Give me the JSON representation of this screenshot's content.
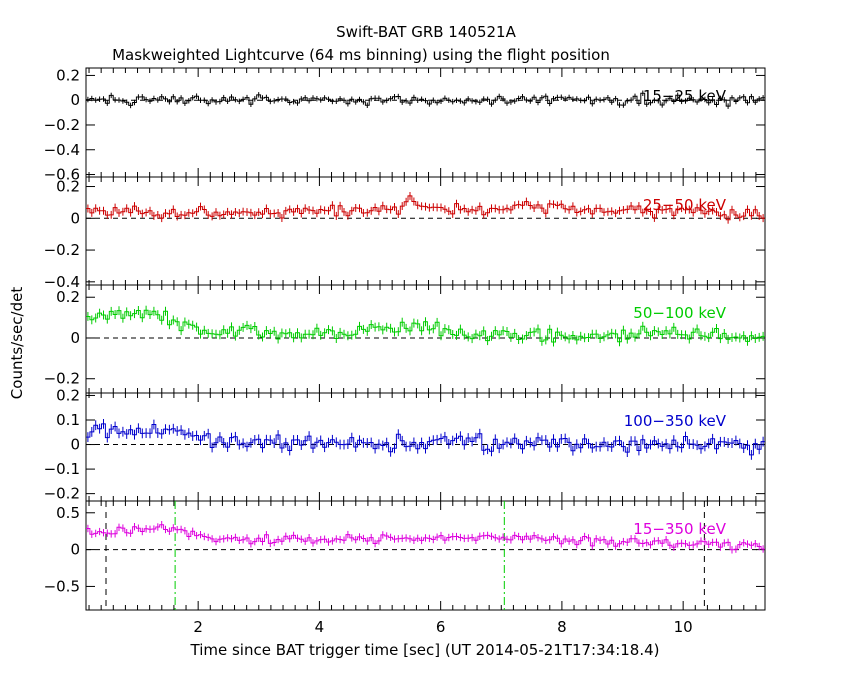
{
  "chart_data": {
    "type": "line",
    "title": "Swift-BAT GRB 140521A",
    "subtitle": "Maskweighted Lightcurve (64 ms binning) using the flight position",
    "xlabel": "Time since BAT trigger time [sec] (UT 2014-05-21T17:34:18.4)",
    "ylabel": "Counts/sec/det",
    "xlim": [
      0.15,
      11.35
    ],
    "xticks": [
      2,
      4,
      6,
      8,
      10
    ],
    "panels": [
      {
        "name": "15−25 keV",
        "color": "#000000",
        "ylim": [
          -0.62,
          0.26
        ],
        "yticks": [
          0.2,
          0,
          -0.2,
          -0.4,
          -0.6
        ],
        "ytick_labels": [
          "0.2",
          "0",
          "−0.2",
          "−0.4",
          "−0.6"
        ],
        "level": [
          [
            0.15,
            0.0
          ],
          [
            11.35,
            0.0
          ]
        ],
        "noise": 0.025,
        "err": 0.022
      },
      {
        "name": "25−50 keV",
        "color": "#cc0000",
        "ylim": [
          -0.42,
          0.26
        ],
        "yticks": [
          0.2,
          0,
          -0.2,
          -0.4
        ],
        "ytick_labels": [
          "0.2",
          "0",
          "−0.2",
          "−0.4"
        ],
        "level": [
          [
            0.15,
            0.05
          ],
          [
            2,
            0.04
          ],
          [
            5.3,
            0.05
          ],
          [
            5.5,
            0.12
          ],
          [
            5.8,
            0.05
          ],
          [
            7.3,
            0.07
          ],
          [
            9,
            0.05
          ],
          [
            11.35,
            0.02
          ]
        ],
        "noise": 0.022,
        "err": 0.025
      },
      {
        "name": "50−100 keV",
        "color": "#00cc00",
        "ylim": [
          -0.27,
          0.26
        ],
        "yticks": [
          0.2,
          0,
          -0.2
        ],
        "ytick_labels": [
          "0.2",
          "0",
          "−0.2"
        ],
        "level": [
          [
            0.15,
            0.11
          ],
          [
            1.2,
            0.13
          ],
          [
            1.6,
            0.08
          ],
          [
            2.2,
            0.03
          ],
          [
            4,
            0.02
          ],
          [
            5.7,
            0.06
          ],
          [
            6,
            0.03
          ],
          [
            8.5,
            0.0
          ],
          [
            9.5,
            0.03
          ],
          [
            11.35,
            0.0
          ]
        ],
        "noise": 0.02,
        "err": 0.022
      },
      {
        "name": "100−350 keV",
        "color": "#0000cc",
        "ylim": [
          -0.23,
          0.21
        ],
        "yticks": [
          0.2,
          0.1,
          0,
          -0.1,
          -0.2
        ],
        "ytick_labels": [
          "0.2",
          "0.1",
          "0",
          "−0.1",
          "−0.2"
        ],
        "level": [
          [
            0.15,
            0.06
          ],
          [
            1.6,
            0.05
          ],
          [
            2.2,
            0.01
          ],
          [
            11.35,
            0.0
          ]
        ],
        "noise": 0.02,
        "err": 0.02
      },
      {
        "name": "15−350 keV",
        "color": "#dd00dd",
        "ylim": [
          -0.82,
          0.66
        ],
        "yticks": [
          0.5,
          0,
          -0.5
        ],
        "ytick_labels": [
          "0.5",
          "0",
          "−0.5"
        ],
        "level": [
          [
            0.15,
            0.26
          ],
          [
            1.6,
            0.28
          ],
          [
            2.2,
            0.14
          ],
          [
            5.3,
            0.15
          ],
          [
            6,
            0.14
          ],
          [
            7.3,
            0.17
          ],
          [
            9,
            0.1
          ],
          [
            11.35,
            0.05
          ]
        ],
        "noise": 0.035,
        "err": 0.05,
        "markers": [
          {
            "x": 0.48,
            "style": "dashed",
            "color": "#000000"
          },
          {
            "x": 1.62,
            "style": "dashdot",
            "color": "#00cc00"
          },
          {
            "x": 7.05,
            "style": "dashdot",
            "color": "#00cc00"
          },
          {
            "x": 10.35,
            "style": "dashed",
            "color": "#000000"
          }
        ]
      }
    ]
  }
}
